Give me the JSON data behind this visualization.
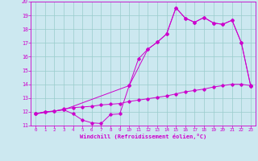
{
  "background_color": "#cce8f0",
  "line_color": "#cc00cc",
  "grid_color": "#99cccc",
  "xlabel": "Windchill (Refroidissement éolien,°C)",
  "xlim": [
    -0.5,
    23.5
  ],
  "ylim": [
    11,
    20
  ],
  "yticks": [
    11,
    12,
    13,
    14,
    15,
    16,
    17,
    18,
    19,
    20
  ],
  "xticks": [
    0,
    1,
    2,
    3,
    4,
    5,
    6,
    7,
    8,
    9,
    10,
    11,
    12,
    13,
    14,
    15,
    16,
    17,
    18,
    19,
    20,
    21,
    22,
    23
  ],
  "line1_x": [
    0,
    1,
    2,
    3,
    4,
    5,
    6,
    7,
    8,
    9,
    10,
    11,
    12,
    13,
    14,
    15,
    16,
    17,
    18,
    19,
    20,
    21,
    22,
    23
  ],
  "line1_y": [
    11.85,
    12.0,
    12.05,
    12.15,
    11.85,
    11.4,
    11.2,
    11.15,
    11.8,
    11.85,
    13.9,
    15.85,
    16.55,
    17.05,
    17.65,
    19.55,
    18.8,
    18.5,
    18.85,
    18.45,
    18.35,
    18.65,
    17.0,
    13.85
  ],
  "line2_x": [
    0,
    1,
    2,
    3,
    4,
    5,
    6,
    7,
    8,
    9,
    10,
    11,
    12,
    13,
    14,
    15,
    16,
    17,
    18,
    19,
    20,
    21,
    22,
    23
  ],
  "line2_y": [
    11.85,
    12.0,
    12.05,
    12.2,
    12.3,
    12.35,
    12.4,
    12.5,
    12.55,
    12.6,
    12.75,
    12.85,
    12.95,
    13.05,
    13.15,
    13.3,
    13.45,
    13.55,
    13.65,
    13.8,
    13.9,
    14.0,
    14.0,
    13.9
  ],
  "line3_x": [
    0,
    3,
    10,
    12,
    13,
    14,
    15,
    16,
    17,
    18,
    19,
    20,
    21,
    22,
    23
  ],
  "line3_y": [
    11.85,
    12.15,
    13.9,
    16.55,
    17.05,
    17.65,
    19.55,
    18.8,
    18.5,
    18.85,
    18.45,
    18.35,
    18.65,
    17.0,
    13.85
  ]
}
